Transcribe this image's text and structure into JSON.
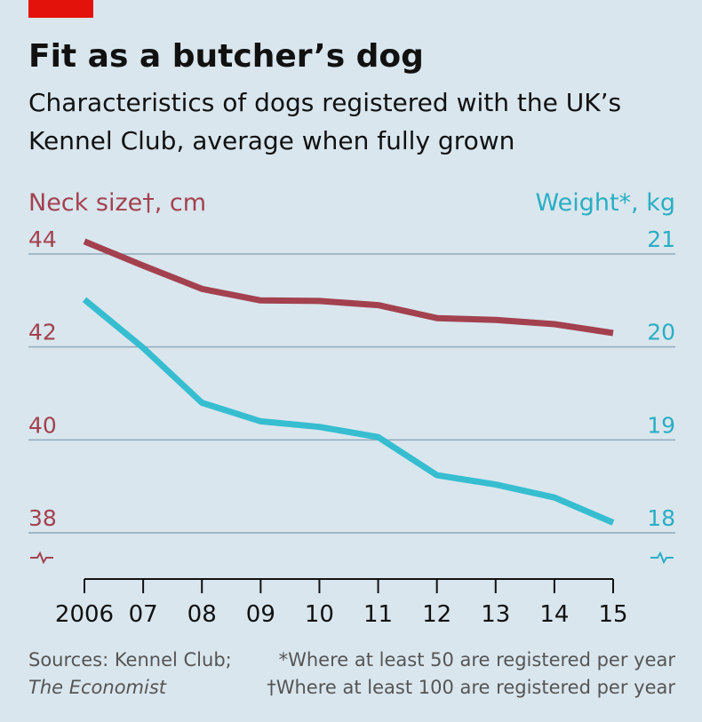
{
  "chart_data": {
    "type": "line",
    "title": "Fit as a butcher’s dog",
    "subtitle": [
      "Characteristics of dogs registered with the UK’s",
      "Kennel Club, average when fully grown"
    ],
    "y_label": "Neck size†, cm",
    "y2_label": "Weight*, kg",
    "categories": [
      "2006",
      "07",
      "08",
      "09",
      "10",
      "11",
      "12",
      "13",
      "14",
      "15"
    ],
    "series": [
      {
        "name": "Neck size",
        "color": "#a3414f",
        "axis": "y",
        "values": [
          44.27,
          43.75,
          43.25,
          43.0,
          42.99,
          42.9,
          42.62,
          42.58,
          42.49,
          42.3
        ]
      },
      {
        "name": "Weight",
        "color": "#37bdd0",
        "axis": "y2",
        "values": [
          20.51,
          19.99,
          19.4,
          19.2,
          19.14,
          19.03,
          18.62,
          18.52,
          18.38,
          18.11
        ]
      }
    ],
    "ylim": [
      38,
      44
    ],
    "yticks": [
      38,
      40,
      42,
      44
    ],
    "y2lim": [
      18,
      21
    ],
    "y2ticks": [
      18,
      19,
      20,
      21
    ],
    "grid": true,
    "sources": [
      "Sources: Kennel Club;",
      "The Economist"
    ],
    "notes": [
      "*Where at least 50 are registered per year",
      "†Where at least 100 are registered per year"
    ]
  }
}
